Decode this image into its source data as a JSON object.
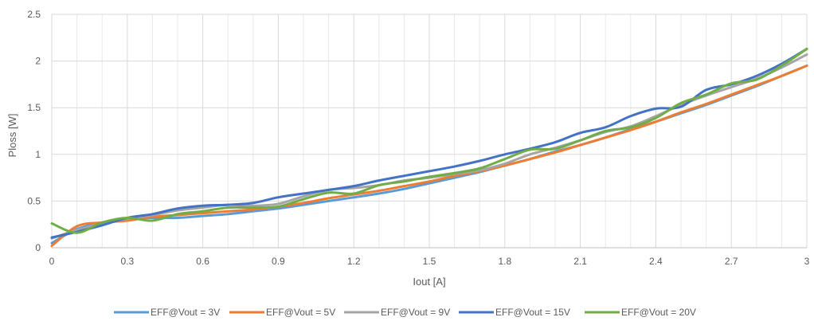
{
  "chart_data": {
    "type": "line",
    "title": "",
    "xlabel": "Iout [A]",
    "ylabel": "Ploss [W]",
    "xlim": [
      0,
      3
    ],
    "ylim": [
      0,
      2.5
    ],
    "x_ticks": [
      "0",
      "0.3",
      "0.6",
      "0.9",
      "1.2",
      "1.5",
      "1.8",
      "2.1",
      "2.4",
      "2.7",
      "3"
    ],
    "y_ticks": [
      "0",
      "0.5",
      "1",
      "1.5",
      "2",
      "2.5"
    ],
    "grid": "both",
    "legend_position": "bottom",
    "series": [
      {
        "name": "EFF@Vout = 3V",
        "color": "#5B9BD5",
        "points": [
          [
            0,
            0.05
          ],
          [
            0.1,
            0.2
          ],
          [
            0.2,
            0.27
          ],
          [
            0.3,
            0.31
          ],
          [
            0.4,
            0.32
          ],
          [
            0.5,
            0.32
          ],
          [
            0.6,
            0.34
          ],
          [
            0.7,
            0.36
          ],
          [
            0.8,
            0.39
          ],
          [
            0.9,
            0.42
          ],
          [
            1.0,
            0.46
          ],
          [
            1.1,
            0.5
          ],
          [
            1.2,
            0.54
          ],
          [
            1.3,
            0.58
          ],
          [
            1.4,
            0.63
          ],
          [
            1.5,
            0.69
          ],
          [
            1.6,
            0.75
          ],
          [
            1.7,
            0.81
          ],
          [
            1.8,
            0.88
          ],
          [
            1.9,
            0.95
          ],
          [
            2.0,
            1.03
          ],
          [
            2.1,
            1.1
          ],
          [
            2.2,
            1.18
          ],
          [
            2.3,
            1.27
          ],
          [
            2.4,
            1.35
          ],
          [
            2.5,
            1.44
          ],
          [
            2.6,
            1.53
          ],
          [
            2.7,
            1.63
          ],
          [
            2.8,
            1.73
          ],
          [
            2.9,
            1.84
          ],
          [
            3.0,
            1.95
          ]
        ]
      },
      {
        "name": "EFF@Vout = 5V",
        "color": "#ED7D31",
        "points": [
          [
            0,
            0.02
          ],
          [
            0.1,
            0.23
          ],
          [
            0.2,
            0.27
          ],
          [
            0.3,
            0.29
          ],
          [
            0.4,
            0.33
          ],
          [
            0.5,
            0.35
          ],
          [
            0.6,
            0.37
          ],
          [
            0.7,
            0.39
          ],
          [
            0.8,
            0.41
          ],
          [
            0.9,
            0.44
          ],
          [
            1.0,
            0.48
          ],
          [
            1.1,
            0.53
          ],
          [
            1.2,
            0.57
          ],
          [
            1.3,
            0.61
          ],
          [
            1.4,
            0.66
          ],
          [
            1.5,
            0.71
          ],
          [
            1.6,
            0.77
          ],
          [
            1.7,
            0.82
          ],
          [
            1.8,
            0.88
          ],
          [
            1.9,
            0.95
          ],
          [
            2.0,
            1.02
          ],
          [
            2.1,
            1.1
          ],
          [
            2.2,
            1.18
          ],
          [
            2.3,
            1.26
          ],
          [
            2.4,
            1.35
          ],
          [
            2.5,
            1.45
          ],
          [
            2.6,
            1.54
          ],
          [
            2.7,
            1.64
          ],
          [
            2.8,
            1.74
          ],
          [
            2.9,
            1.84
          ],
          [
            3.0,
            1.95
          ]
        ]
      },
      {
        "name": "EFF@Vout = 9V",
        "color": "#A5A5A5",
        "points": [
          [
            0,
            0.1
          ],
          [
            0.1,
            0.19
          ],
          [
            0.2,
            0.26
          ],
          [
            0.3,
            0.31
          ],
          [
            0.4,
            0.35
          ],
          [
            0.5,
            0.4
          ],
          [
            0.6,
            0.43
          ],
          [
            0.7,
            0.46
          ],
          [
            0.8,
            0.45
          ],
          [
            0.9,
            0.47
          ],
          [
            1.0,
            0.55
          ],
          [
            1.1,
            0.62
          ],
          [
            1.2,
            0.64
          ],
          [
            1.3,
            0.67
          ],
          [
            1.4,
            0.72
          ],
          [
            1.5,
            0.75
          ],
          [
            1.6,
            0.79
          ],
          [
            1.7,
            0.83
          ],
          [
            1.8,
            0.9
          ],
          [
            1.9,
            1.0
          ],
          [
            2.0,
            1.07
          ],
          [
            2.1,
            1.15
          ],
          [
            2.2,
            1.24
          ],
          [
            2.3,
            1.3
          ],
          [
            2.4,
            1.41
          ],
          [
            2.5,
            1.53
          ],
          [
            2.6,
            1.63
          ],
          [
            2.7,
            1.72
          ],
          [
            2.8,
            1.81
          ],
          [
            2.9,
            1.93
          ],
          [
            3.0,
            2.07
          ]
        ]
      },
      {
        "name": "EFF@Vout = 15V",
        "color": "#4472C4",
        "points": [
          [
            0,
            0.11
          ],
          [
            0.1,
            0.17
          ],
          [
            0.2,
            0.24
          ],
          [
            0.3,
            0.32
          ],
          [
            0.4,
            0.36
          ],
          [
            0.5,
            0.42
          ],
          [
            0.6,
            0.45
          ],
          [
            0.7,
            0.46
          ],
          [
            0.8,
            0.48
          ],
          [
            0.9,
            0.54
          ],
          [
            1.0,
            0.58
          ],
          [
            1.1,
            0.62
          ],
          [
            1.2,
            0.66
          ],
          [
            1.3,
            0.72
          ],
          [
            1.4,
            0.77
          ],
          [
            1.5,
            0.82
          ],
          [
            1.6,
            0.87
          ],
          [
            1.7,
            0.93
          ],
          [
            1.8,
            1.0
          ],
          [
            1.9,
            1.06
          ],
          [
            2.0,
            1.13
          ],
          [
            2.1,
            1.23
          ],
          [
            2.2,
            1.29
          ],
          [
            2.3,
            1.41
          ],
          [
            2.4,
            1.49
          ],
          [
            2.5,
            1.51
          ],
          [
            2.6,
            1.69
          ],
          [
            2.7,
            1.75
          ],
          [
            2.8,
            1.84
          ],
          [
            2.9,
            1.97
          ],
          [
            3.0,
            2.13
          ]
        ]
      },
      {
        "name": "EFF@Vout = 20V",
        "color": "#70AD47",
        "points": [
          [
            0,
            0.26
          ],
          [
            0.1,
            0.16
          ],
          [
            0.2,
            0.27
          ],
          [
            0.3,
            0.32
          ],
          [
            0.4,
            0.29
          ],
          [
            0.5,
            0.36
          ],
          [
            0.6,
            0.39
          ],
          [
            0.7,
            0.43
          ],
          [
            0.8,
            0.43
          ],
          [
            0.9,
            0.44
          ],
          [
            1.0,
            0.52
          ],
          [
            1.1,
            0.59
          ],
          [
            1.2,
            0.58
          ],
          [
            1.3,
            0.67
          ],
          [
            1.4,
            0.71
          ],
          [
            1.5,
            0.76
          ],
          [
            1.6,
            0.8
          ],
          [
            1.7,
            0.85
          ],
          [
            1.8,
            0.95
          ],
          [
            1.9,
            1.05
          ],
          [
            2.0,
            1.06
          ],
          [
            2.1,
            1.15
          ],
          [
            2.2,
            1.25
          ],
          [
            2.3,
            1.29
          ],
          [
            2.4,
            1.39
          ],
          [
            2.5,
            1.55
          ],
          [
            2.6,
            1.64
          ],
          [
            2.7,
            1.76
          ],
          [
            2.8,
            1.8
          ],
          [
            2.9,
            1.95
          ],
          [
            3.0,
            2.13
          ]
        ]
      }
    ]
  }
}
